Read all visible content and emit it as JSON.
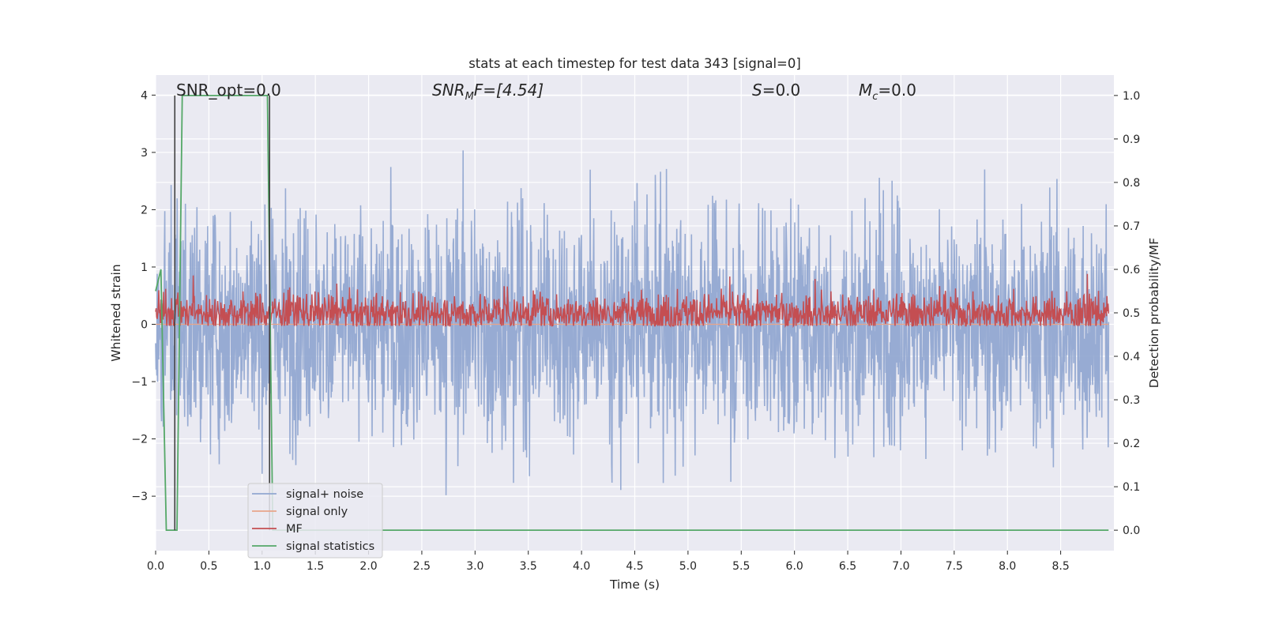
{
  "chart_data": {
    "type": "line",
    "title": "stats at each timestep for test data 343 [signal=0]",
    "xlabel": "Time (s)",
    "ylabel": "Whitened strain",
    "y2label": "Detection probability/MF",
    "xlim": [
      0.0,
      9.0
    ],
    "ylim": [
      -3.95,
      4.35
    ],
    "y2lim": [
      -0.047,
      1.047
    ],
    "xticks": [
      "0.0",
      "0.5",
      "1.0",
      "1.5",
      "2.0",
      "2.5",
      "3.0",
      "3.5",
      "4.0",
      "4.5",
      "5.0",
      "5.5",
      "6.0",
      "6.5",
      "7.0",
      "7.5",
      "8.0",
      "8.5"
    ],
    "yticks": [
      "−3",
      "−2",
      "−1",
      "0",
      "1",
      "2",
      "3",
      "4"
    ],
    "y2ticks": [
      "0.0",
      "0.1",
      "0.2",
      "0.3",
      "0.4",
      "0.5",
      "0.6",
      "0.7",
      "0.8",
      "0.9",
      "1.0"
    ],
    "grid": true,
    "legend_position": "lower-left",
    "annotations": {
      "snr_opt": "SNR_opt=0.0",
      "snr_mf_main": "SNR",
      "snr_mf_sub": "M",
      "snr_mf_rest": "F=[4.54]",
      "s_main": "S",
      "s_rest": "=0.0",
      "mc_main": "M",
      "mc_sub": "c",
      "mc_rest": "=0.0"
    },
    "markers": [
      0.18,
      1.07
    ],
    "series": [
      {
        "name": "signal+ noise",
        "color": "#92a8d1",
        "axis": "left",
        "noise": {
          "sigma": 1.0,
          "max_abs": 4.0,
          "t_end": 8.95
        }
      },
      {
        "name": "signal only",
        "color": "#e8a58a",
        "axis": "left",
        "values": "flat zero"
      },
      {
        "name": "MF",
        "color": "#c44e52",
        "axis": "right",
        "baseline": 0.5,
        "noise": {
          "range": [
            0.47,
            0.62
          ],
          "t_end": 8.95
        }
      },
      {
        "name": "signal statistics",
        "color": "#55a868",
        "axis": "right",
        "x": [
          0.0,
          0.05,
          0.1,
          0.15,
          0.2,
          0.25,
          1.0,
          1.05,
          1.1,
          1.15,
          1.2,
          1.5,
          2.0,
          3.0,
          4.0,
          5.0,
          6.0,
          7.0,
          8.0,
          8.95
        ],
        "values": [
          0.55,
          0.6,
          0.0,
          -0.0,
          0.0,
          1.0,
          1.0,
          1.0,
          0.0,
          0.0,
          0.0,
          0.0,
          0.0,
          0.0,
          0.0,
          0.0,
          0.0,
          0.0,
          0.0,
          0.0
        ]
      }
    ]
  },
  "colors": {
    "plot_background": "#eaeaf2",
    "grid": "#ffffff",
    "marker_line": "#404040"
  }
}
